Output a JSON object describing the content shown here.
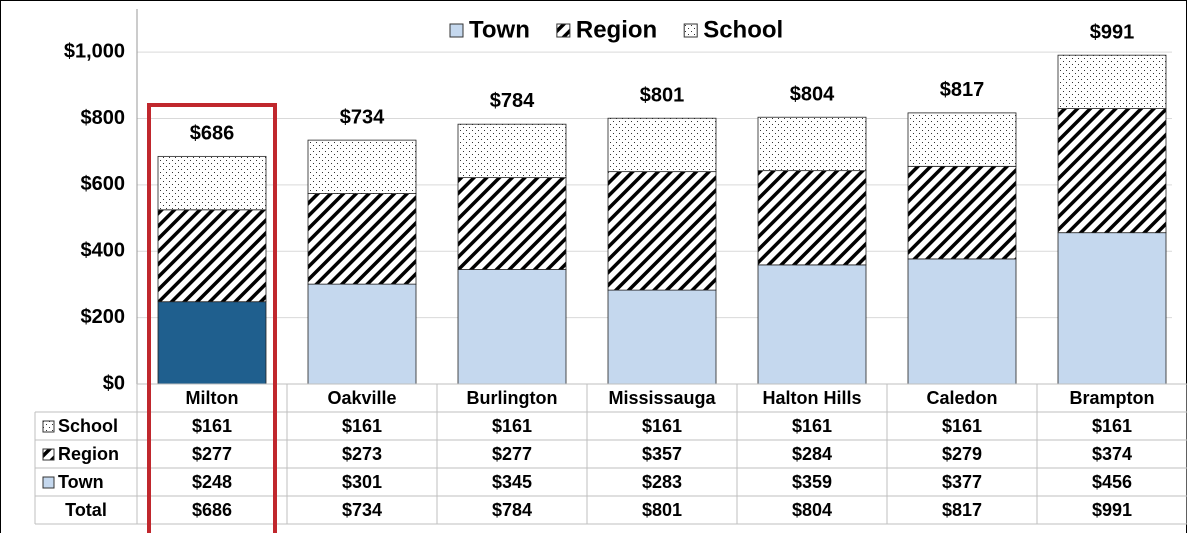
{
  "chart_data": {
    "type": "stacked_bar",
    "categories": [
      "Milton",
      "Oakville",
      "Burlington",
      "Mississauga",
      "Halton Hills",
      "Caledon",
      "Brampton"
    ],
    "series": [
      {
        "name": "Town",
        "color": "#c5d8ee",
        "pattern": "solid",
        "values": [
          248,
          301,
          345,
          283,
          359,
          377,
          456
        ],
        "value_labels": [
          "$248",
          "$301",
          "$345",
          "$283",
          "$359",
          "$377",
          "$456"
        ]
      },
      {
        "name": "Region",
        "color": "#000000",
        "pattern": "hatch",
        "values": [
          277,
          273,
          277,
          357,
          284,
          279,
          374
        ],
        "value_labels": [
          "$277",
          "$273",
          "$277",
          "$357",
          "$284",
          "$279",
          "$374"
        ]
      },
      {
        "name": "School",
        "color": "#000000",
        "pattern": "dots",
        "values": [
          161,
          161,
          161,
          161,
          161,
          161,
          161
        ],
        "value_labels": [
          "$161",
          "$161",
          "$161",
          "$161",
          "$161",
          "$161",
          "$161"
        ]
      }
    ],
    "total": {
      "name": "Total",
      "values": [
        686,
        734,
        784,
        801,
        804,
        817,
        991
      ],
      "value_labels": [
        "$686",
        "$734",
        "$784",
        "$801",
        "$804",
        "$817",
        "$991"
      ]
    },
    "highlight": {
      "category": "Milton",
      "color": "#1f5f8e",
      "outline": "#c0272d"
    },
    "ylim": [
      0,
      1100
    ],
    "yticks": [
      {
        "value": 0,
        "label": "$0"
      },
      {
        "value": 200,
        "label": "$200"
      },
      {
        "value": 400,
        "label": "$400"
      },
      {
        "value": 600,
        "label": "$600"
      },
      {
        "value": 800,
        "label": "$800"
      },
      {
        "value": 1000,
        "label": "$1,000"
      }
    ],
    "grid": true,
    "legend": "top"
  }
}
